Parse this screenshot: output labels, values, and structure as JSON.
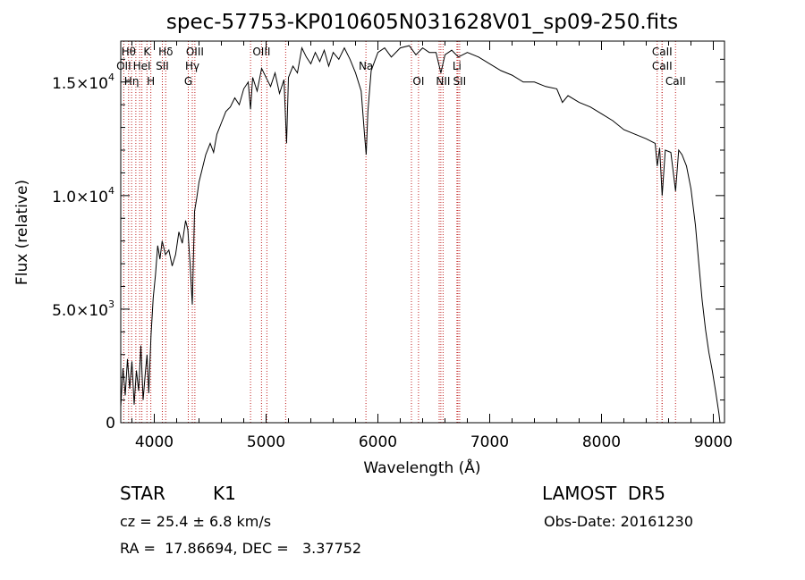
{
  "chart_data": {
    "type": "line",
    "title": "spec-57753-KP010605N031628V01_sp09-250.fits",
    "xlabel": "Wavelength (Å)",
    "ylabel": "Flux (relative)",
    "xlim": [
      3700,
      9100
    ],
    "ylim": [
      0,
      16800
    ],
    "grid": false,
    "x_ticks": [
      {
        "value": 4000,
        "label": "4000"
      },
      {
        "value": 5000,
        "label": "5000"
      },
      {
        "value": 6000,
        "label": "6000"
      },
      {
        "value": 7000,
        "label": "7000"
      },
      {
        "value": 8000,
        "label": "8000"
      },
      {
        "value": 9000,
        "label": "9000"
      }
    ],
    "y_ticks": [
      {
        "value": 0,
        "label": "0",
        "mant": "",
        "exp": ""
      },
      {
        "value": 5000,
        "label": "",
        "mant": "5.0×10",
        "exp": "3"
      },
      {
        "value": 10000,
        "label": "",
        "mant": "1.0×10",
        "exp": "4"
      },
      {
        "value": 15000,
        "label": "",
        "mant": "1.5×10",
        "exp": "4"
      }
    ],
    "series": [
      {
        "color": "#000000",
        "points": [
          [
            3700,
            700
          ],
          [
            3720,
            2400
          ],
          [
            3740,
            1200
          ],
          [
            3760,
            2800
          ],
          [
            3780,
            1500
          ],
          [
            3800,
            2700
          ],
          [
            3820,
            800
          ],
          [
            3840,
            2300
          ],
          [
            3860,
            1400
          ],
          [
            3880,
            3400
          ],
          [
            3900,
            1000
          ],
          [
            3920,
            2200
          ],
          [
            3935,
            3000
          ],
          [
            3950,
            1300
          ],
          [
            3970,
            3800
          ],
          [
            3990,
            5500
          ],
          [
            4010,
            6500
          ],
          [
            4030,
            7800
          ],
          [
            4050,
            7200
          ],
          [
            4070,
            8000
          ],
          [
            4100,
            7400
          ],
          [
            4130,
            7600
          ],
          [
            4160,
            6900
          ],
          [
            4190,
            7400
          ],
          [
            4220,
            8400
          ],
          [
            4250,
            7900
          ],
          [
            4280,
            8900
          ],
          [
            4300,
            8500
          ],
          [
            4320,
            7000
          ],
          [
            4340,
            5200
          ],
          [
            4360,
            9300
          ],
          [
            4380,
            9900
          ],
          [
            4400,
            10600
          ],
          [
            4430,
            11200
          ],
          [
            4460,
            11800
          ],
          [
            4500,
            12300
          ],
          [
            4530,
            11900
          ],
          [
            4560,
            12700
          ],
          [
            4600,
            13200
          ],
          [
            4640,
            13700
          ],
          [
            4680,
            13900
          ],
          [
            4720,
            14300
          ],
          [
            4760,
            14000
          ],
          [
            4800,
            14700
          ],
          [
            4840,
            15000
          ],
          [
            4861,
            13800
          ],
          [
            4880,
            15200
          ],
          [
            4920,
            14600
          ],
          [
            4960,
            15600
          ],
          [
            5000,
            15200
          ],
          [
            5040,
            14800
          ],
          [
            5080,
            15400
          ],
          [
            5120,
            14500
          ],
          [
            5160,
            15100
          ],
          [
            5183,
            12300
          ],
          [
            5200,
            15200
          ],
          [
            5240,
            15700
          ],
          [
            5280,
            15400
          ],
          [
            5320,
            16500
          ],
          [
            5360,
            16100
          ],
          [
            5400,
            15800
          ],
          [
            5440,
            16300
          ],
          [
            5480,
            15900
          ],
          [
            5520,
            16400
          ],
          [
            5560,
            15700
          ],
          [
            5600,
            16300
          ],
          [
            5650,
            16000
          ],
          [
            5700,
            16500
          ],
          [
            5750,
            16000
          ],
          [
            5800,
            15400
          ],
          [
            5850,
            14600
          ],
          [
            5880,
            12700
          ],
          [
            5895,
            11800
          ],
          [
            5910,
            13700
          ],
          [
            5940,
            15500
          ],
          [
            6000,
            16300
          ],
          [
            6060,
            16500
          ],
          [
            6120,
            16100
          ],
          [
            6200,
            16500
          ],
          [
            6280,
            16600
          ],
          [
            6340,
            16200
          ],
          [
            6400,
            16500
          ],
          [
            6460,
            16300
          ],
          [
            6520,
            16300
          ],
          [
            6563,
            15400
          ],
          [
            6600,
            16200
          ],
          [
            6660,
            16400
          ],
          [
            6720,
            16100
          ],
          [
            6800,
            16300
          ],
          [
            6900,
            16100
          ],
          [
            7000,
            15800
          ],
          [
            7100,
            15500
          ],
          [
            7200,
            15300
          ],
          [
            7300,
            15000
          ],
          [
            7400,
            15000
          ],
          [
            7500,
            14800
          ],
          [
            7600,
            14700
          ],
          [
            7650,
            14100
          ],
          [
            7700,
            14400
          ],
          [
            7800,
            14100
          ],
          [
            7900,
            13900
          ],
          [
            8000,
            13600
          ],
          [
            8100,
            13300
          ],
          [
            8200,
            12900
          ],
          [
            8300,
            12700
          ],
          [
            8400,
            12500
          ],
          [
            8480,
            12300
          ],
          [
            8498,
            11300
          ],
          [
            8520,
            12100
          ],
          [
            8542,
            10000
          ],
          [
            8570,
            12000
          ],
          [
            8620,
            11900
          ],
          [
            8662,
            10200
          ],
          [
            8690,
            12000
          ],
          [
            8720,
            11800
          ],
          [
            8760,
            11300
          ],
          [
            8800,
            10300
          ],
          [
            8840,
            8700
          ],
          [
            8870,
            7000
          ],
          [
            8900,
            5400
          ],
          [
            8930,
            4100
          ],
          [
            8960,
            3100
          ],
          [
            8990,
            2300
          ],
          [
            9020,
            1400
          ],
          [
            9050,
            400
          ],
          [
            9060,
            0
          ]
        ]
      }
    ],
    "lines": [
      {
        "w": 3727,
        "label": "OII",
        "row": 2
      },
      {
        "w": 3770,
        "label": "Hθ",
        "row": 1
      },
      {
        "w": 3797,
        "label": "Hη",
        "row": 3
      },
      {
        "w": 3835,
        "label": "",
        "row": 0
      },
      {
        "w": 3869,
        "label": "",
        "row": 0
      },
      {
        "w": 3889,
        "label": "HeI",
        "row": 2
      },
      {
        "w": 3934,
        "label": "K",
        "row": 1
      },
      {
        "w": 3969,
        "label": "H",
        "row": 3
      },
      {
        "w": 4072,
        "label": "SII",
        "row": 2
      },
      {
        "w": 4102,
        "label": "Hδ",
        "row": 1
      },
      {
        "w": 4304,
        "label": "G",
        "row": 3
      },
      {
        "w": 4340,
        "label": "Hγ",
        "row": 2
      },
      {
        "w": 4363,
        "label": "OIII",
        "row": 1
      },
      {
        "w": 4861,
        "label": "",
        "row": 0
      },
      {
        "w": 4959,
        "label": "OIII",
        "row": 1
      },
      {
        "w": 5007,
        "label": "",
        "row": 0
      },
      {
        "w": 5175,
        "label": "",
        "row": 0
      },
      {
        "w": 5893,
        "label": "Na",
        "row": 2
      },
      {
        "w": 6300,
        "label": "",
        "row": 0
      },
      {
        "w": 6363,
        "label": "OI",
        "row": 3
      },
      {
        "w": 6548,
        "label": "",
        "row": 0
      },
      {
        "w": 6563,
        "label": "",
        "row": 0
      },
      {
        "w": 6583,
        "label": "NII",
        "row": 3
      },
      {
        "w": 6707,
        "label": "Li",
        "row": 2
      },
      {
        "w": 6716,
        "label": "",
        "row": 0
      },
      {
        "w": 6731,
        "label": "SII",
        "row": 3
      },
      {
        "w": 8498,
        "label": "",
        "row": 0
      },
      {
        "w": 8542,
        "label": "CaII",
        "row": 1
      },
      {
        "w": 8542,
        "label": "CaII",
        "row": 2
      },
      {
        "w": 8662,
        "label": "CaII",
        "row": 3
      }
    ],
    "line_color": "#c02020"
  },
  "info": {
    "object_class": "STAR",
    "subclass": "K1",
    "survey": "LAMOST  DR5",
    "redshift": "cz = 25.4 ± 6.8 km/s",
    "obs_date": "Obs-Date: 20161230",
    "coords": "RA =  17.86694, DEC =   3.37752"
  }
}
